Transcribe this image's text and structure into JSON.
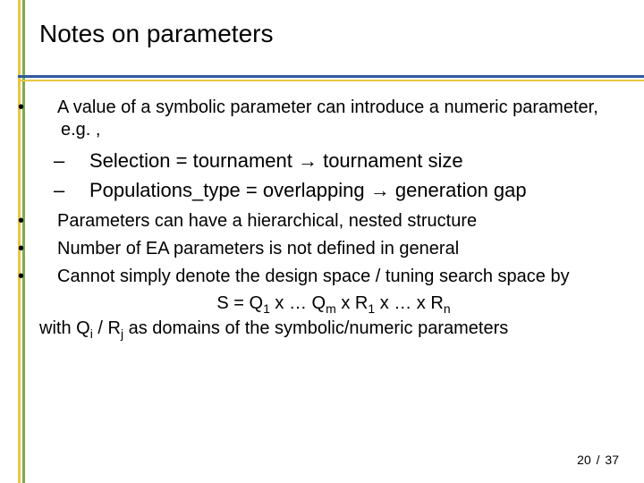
{
  "colors": {
    "rail_yellow": "#e6c843",
    "rail_green": "#7fa850",
    "hr_blue": "#2e5a9e",
    "hr_yellow": "#e6c843",
    "text": "#000000",
    "background": "#ffffff"
  },
  "title": "Notes on parameters",
  "bullets": {
    "b1": "A value of a symbolic parameter can introduce a numeric parameter, e.g. ,",
    "s1": "Selection = tournament → tournament size",
    "s2": "Populations_type = overlapping → generation gap",
    "b2": "Parameters can have a hierarchical, nested structure",
    "b3": "Number of EA parameters is not defined in general",
    "b4": "Cannot simply denote the design space / tuning search space by",
    "formula_plain": "S = Q1 x … Qm x R1 x … x Rn",
    "tail_plain": "with Qi / Rj as domains of the symbolic/numeric parameters",
    "formula_prefix": "S = Q",
    "formula_mid1": " x … Q",
    "formula_mid2": " x R",
    "formula_mid3": " x … x R",
    "sub1": "1",
    "subm": "m",
    "subr1": "1",
    "subn": "n",
    "tail_pre": "with Q",
    "tail_subi": "i",
    "tail_mid": " / R",
    "tail_subj": "j",
    "tail_post": " as domains of the symbolic/numeric parameters"
  },
  "footer": {
    "current": "20",
    "sep": "/",
    "total": "37"
  }
}
